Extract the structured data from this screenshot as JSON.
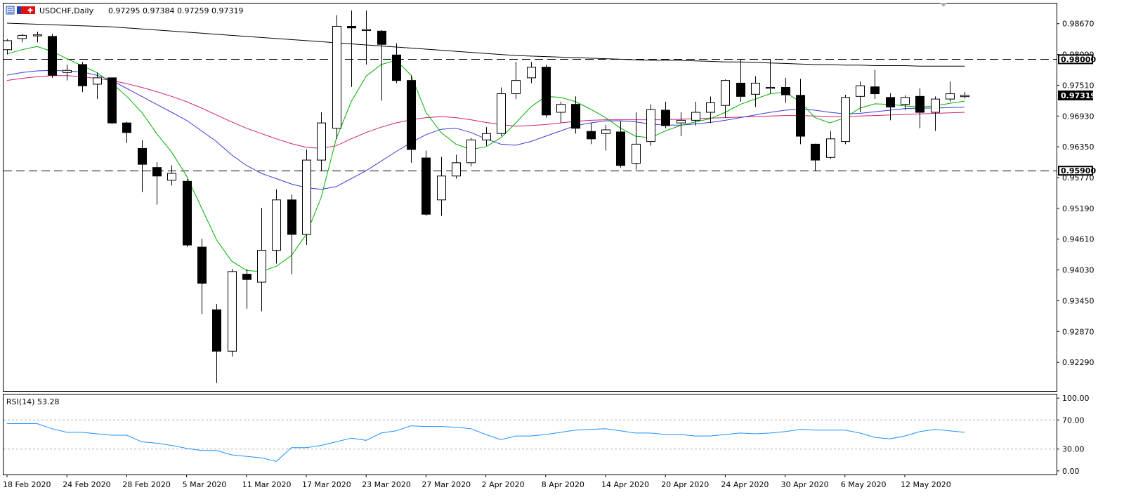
{
  "header": {
    "symbol": "USDCHF",
    "timeframe": "Daily",
    "title": "USDCHF,Daily",
    "ohlc": "0.97295 0.97384 0.97259 0.97319"
  },
  "rsi_panel": {
    "label": "RSI(14) 53.28",
    "ticks": [
      "100.00",
      "70.00",
      "30.00",
      "0.00"
    ]
  },
  "colors": {
    "bull": "#ffffff",
    "bear": "#000000",
    "ma_fast": "#00b000",
    "ma_mid": "#3b3bd6",
    "ma_slow": "#d0206e",
    "ma_long": "#000000",
    "rsi": "#1e90ff",
    "level": "#000000"
  },
  "chart_data": [
    {
      "type": "candlestick",
      "title": "USDCHF,Daily",
      "y_ticks": [
        "0.98670",
        "0.98090",
        "0.97510",
        "0.96930",
        "0.96350",
        "0.95770",
        "0.95190",
        "0.94610",
        "0.94030",
        "0.93450",
        "0.92870",
        "0.92290"
      ],
      "ylim": [
        0.9175,
        0.9905
      ],
      "x_labels": [
        "18 Feb 2020",
        "24 Feb 2020",
        "28 Feb 2020",
        "5 Mar 2020",
        "11 Mar 2020",
        "17 Mar 2020",
        "23 Mar 2020",
        "27 Mar 2020",
        "2 Apr 2020",
        "8 Apr 2020",
        "14 Apr 2020",
        "20 Apr 2020",
        "24 Apr 2020",
        "30 Apr 2020",
        "6 May 2020",
        "12 May 2020"
      ],
      "x_label_index": [
        0,
        4,
        8,
        12,
        16,
        20,
        24,
        28,
        32,
        36,
        40,
        44,
        48,
        52,
        56,
        60
      ],
      "horizontal_levels": [
        {
          "value": 0.98,
          "label": "0.98000"
        },
        {
          "value": 0.959,
          "label": "0.95900"
        }
      ],
      "current_price": {
        "value": 0.97319,
        "label": "0.97319"
      },
      "candles": [
        [
          0.9818,
          0.9838,
          0.9809,
          0.9835
        ],
        [
          0.9839,
          0.9848,
          0.9832,
          0.9845
        ],
        [
          0.9845,
          0.9852,
          0.9832,
          0.9846
        ],
        [
          0.9843,
          0.9848,
          0.9765,
          0.977
        ],
        [
          0.9775,
          0.979,
          0.976,
          0.9779
        ],
        [
          0.979,
          0.9795,
          0.9738,
          0.975
        ],
        [
          0.9753,
          0.9775,
          0.9725,
          0.9765
        ],
        [
          0.9765,
          0.9765,
          0.9678,
          0.968
        ],
        [
          0.968,
          0.9682,
          0.9642,
          0.9662
        ],
        [
          0.9632,
          0.9648,
          0.955,
          0.9602
        ],
        [
          0.9596,
          0.9606,
          0.9526,
          0.958
        ],
        [
          0.9572,
          0.96,
          0.9562,
          0.9585
        ],
        [
          0.957,
          0.9574,
          0.9446,
          0.945
        ],
        [
          0.9446,
          0.9462,
          0.932,
          0.9378
        ],
        [
          0.9328,
          0.9339,
          0.919,
          0.925
        ],
        [
          0.925,
          0.9405,
          0.924,
          0.94
        ],
        [
          0.9395,
          0.9405,
          0.933,
          0.9385
        ],
        [
          0.938,
          0.952,
          0.9325,
          0.944
        ],
        [
          0.944,
          0.9555,
          0.9415,
          0.9535
        ],
        [
          0.9535,
          0.9545,
          0.9395,
          0.947
        ],
        [
          0.947,
          0.963,
          0.945,
          0.961
        ],
        [
          0.961,
          0.97,
          0.959,
          0.968
        ],
        [
          0.967,
          0.9883,
          0.965,
          0.9862
        ],
        [
          0.9862,
          0.9892,
          0.9748,
          0.9859
        ],
        [
          0.9856,
          0.9892,
          0.979,
          0.9856
        ],
        [
          0.9853,
          0.9855,
          0.9722,
          0.9828
        ],
        [
          0.9808,
          0.983,
          0.9755,
          0.976
        ],
        [
          0.976,
          0.977,
          0.9605,
          0.963
        ],
        [
          0.9614,
          0.9628,
          0.9505,
          0.9508
        ],
        [
          0.9535,
          0.9616,
          0.9505,
          0.958
        ],
        [
          0.958,
          0.962,
          0.9575,
          0.9605
        ],
        [
          0.9605,
          0.9652,
          0.9598,
          0.9648
        ],
        [
          0.9648,
          0.9672,
          0.9637,
          0.966
        ],
        [
          0.966,
          0.9747,
          0.9655,
          0.9735
        ],
        [
          0.9735,
          0.9795,
          0.9725,
          0.976
        ],
        [
          0.9765,
          0.9795,
          0.9755,
          0.9785
        ],
        [
          0.9785,
          0.979,
          0.969,
          0.9695
        ],
        [
          0.97,
          0.972,
          0.968,
          0.9715
        ],
        [
          0.9715,
          0.973,
          0.966,
          0.967
        ],
        [
          0.9664,
          0.968,
          0.964,
          0.965
        ],
        [
          0.966,
          0.9676,
          0.9628,
          0.9667
        ],
        [
          0.9663,
          0.9683,
          0.9596,
          0.96
        ],
        [
          0.9604,
          0.97,
          0.9592,
          0.964
        ],
        [
          0.9645,
          0.9715,
          0.9637,
          0.9705
        ],
        [
          0.9704,
          0.972,
          0.967,
          0.9675
        ],
        [
          0.968,
          0.97,
          0.9655,
          0.9685
        ],
        [
          0.9685,
          0.972,
          0.9675,
          0.97
        ],
        [
          0.97,
          0.973,
          0.968,
          0.9718
        ],
        [
          0.9713,
          0.9762,
          0.969,
          0.976
        ],
        [
          0.9755,
          0.98,
          0.972,
          0.973
        ],
        [
          0.9734,
          0.9768,
          0.971,
          0.9755
        ],
        [
          0.9747,
          0.98,
          0.9735,
          0.9747
        ],
        [
          0.9747,
          0.9765,
          0.9718,
          0.9733
        ],
        [
          0.9732,
          0.9763,
          0.964,
          0.9655
        ],
        [
          0.964,
          0.9641,
          0.959,
          0.961
        ],
        [
          0.9615,
          0.9665,
          0.9612,
          0.965
        ],
        [
          0.9645,
          0.9733,
          0.964,
          0.9728
        ],
        [
          0.973,
          0.9758,
          0.97,
          0.975
        ],
        [
          0.9748,
          0.978,
          0.9725,
          0.9735
        ],
        [
          0.9728,
          0.9736,
          0.9685,
          0.971
        ],
        [
          0.9715,
          0.9732,
          0.9705,
          0.9728
        ],
        [
          0.973,
          0.9745,
          0.967,
          0.97
        ],
        [
          0.97,
          0.973,
          0.9665,
          0.9725
        ],
        [
          0.9725,
          0.9758,
          0.972,
          0.9735
        ],
        [
          0.97295,
          0.97384,
          0.97259,
          0.97319
        ]
      ],
      "ma_fast": [
        0.981,
        0.9818,
        0.9824,
        0.9815,
        0.9801,
        0.9788,
        0.9775,
        0.9755,
        0.973,
        0.97,
        0.966,
        0.9625,
        0.958,
        0.952,
        0.946,
        0.942,
        0.9402,
        0.94,
        0.941,
        0.943,
        0.947,
        0.954,
        0.965,
        0.972,
        0.9768,
        0.979,
        0.9798,
        0.977,
        0.97,
        0.9662,
        0.964,
        0.963,
        0.9635,
        0.9652,
        0.968,
        0.971,
        0.973,
        0.9728,
        0.972,
        0.9706,
        0.969,
        0.967,
        0.9655,
        0.9652,
        0.9665,
        0.9675,
        0.9682,
        0.9688,
        0.97,
        0.9715,
        0.9725,
        0.9735,
        0.9738,
        0.972,
        0.969,
        0.968,
        0.969,
        0.9708,
        0.9716,
        0.9715,
        0.9712,
        0.971,
        0.9712,
        0.9717,
        0.9721
      ],
      "ma_mid": [
        0.977,
        0.9775,
        0.9778,
        0.9779,
        0.9778,
        0.9776,
        0.977,
        0.976,
        0.9745,
        0.973,
        0.9715,
        0.97,
        0.9685,
        0.9665,
        0.9645,
        0.962,
        0.96,
        0.9585,
        0.9575,
        0.9565,
        0.9558,
        0.9555,
        0.956,
        0.9575,
        0.959,
        0.9608,
        0.9626,
        0.9643,
        0.9658,
        0.9668,
        0.967,
        0.9662,
        0.965,
        0.964,
        0.9638,
        0.9645,
        0.9655,
        0.9665,
        0.9675,
        0.968,
        0.9684,
        0.9684,
        0.9682,
        0.9678,
        0.9676,
        0.9676,
        0.9678,
        0.9681,
        0.9685,
        0.969,
        0.9695,
        0.97,
        0.9704,
        0.9706,
        0.9704,
        0.97,
        0.9697,
        0.9698,
        0.9701,
        0.9704,
        0.9707,
        0.9708,
        0.9708,
        0.9709,
        0.971
      ],
      "ma_slow": [
        0.976,
        0.9764,
        0.9767,
        0.9769,
        0.9769,
        0.9767,
        0.9764,
        0.976,
        0.9754,
        0.9747,
        0.9739,
        0.973,
        0.972,
        0.9708,
        0.9695,
        0.9682,
        0.967,
        0.966,
        0.965,
        0.9641,
        0.9634,
        0.9632,
        0.9637,
        0.965,
        0.9662,
        0.9672,
        0.968,
        0.9686,
        0.969,
        0.9692,
        0.969,
        0.9686,
        0.9681,
        0.9677,
        0.9674,
        0.9675,
        0.9677,
        0.968,
        0.9683,
        0.9685,
        0.9686,
        0.9686,
        0.9686,
        0.9686,
        0.9686,
        0.9687,
        0.9688,
        0.9689,
        0.969,
        0.9691,
        0.9692,
        0.9693,
        0.9694,
        0.9694,
        0.9693,
        0.9692,
        0.9692,
        0.9693,
        0.9694,
        0.9695,
        0.9696,
        0.9697,
        0.9698,
        0.9699,
        0.97
      ],
      "ma_long": [
        0.9868,
        0.9867,
        0.9866,
        0.9865,
        0.9864,
        0.9863,
        0.9862,
        0.9861,
        0.9859,
        0.9857,
        0.9855,
        0.9853,
        0.9851,
        0.9849,
        0.9847,
        0.9845,
        0.9843,
        0.9841,
        0.9839,
        0.9837,
        0.9835,
        0.9833,
        0.9831,
        0.9829,
        0.9827,
        0.9825,
        0.9823,
        0.9821,
        0.9819,
        0.9817,
        0.9815,
        0.9813,
        0.9811,
        0.9809,
        0.9807,
        0.9806,
        0.9805,
        0.9804,
        0.9803,
        0.9802,
        0.9801,
        0.98,
        0.9799,
        0.9798,
        0.9798,
        0.9798,
        0.9797,
        0.9796,
        0.9795,
        0.9795,
        0.9794,
        0.9793,
        0.9792,
        0.9791,
        0.979,
        0.979,
        0.9789,
        0.9789,
        0.9788,
        0.9788,
        0.9788,
        0.9787,
        0.9787,
        0.9787,
        0.9787
      ]
    },
    {
      "type": "line",
      "title": "RSI(14) 53.28",
      "ylim": [
        -5,
        105
      ],
      "y_ticks": [
        100,
        70,
        30,
        0
      ],
      "reference_levels": [
        70,
        30
      ],
      "values": [
        65,
        65,
        65,
        58,
        53,
        53,
        51,
        49,
        49,
        40,
        38,
        35,
        31,
        28,
        28,
        22,
        20,
        18,
        13,
        32,
        32,
        35,
        40,
        45,
        42,
        52,
        55,
        62,
        61,
        61,
        60,
        58,
        50,
        43,
        48,
        48,
        50,
        53,
        56,
        57,
        58,
        55,
        52,
        52,
        50,
        50,
        48,
        48,
        50,
        52,
        51,
        52,
        54,
        57,
        56,
        56,
        56,
        52,
        46,
        44,
        48,
        54,
        57,
        55,
        53
      ]
    }
  ]
}
